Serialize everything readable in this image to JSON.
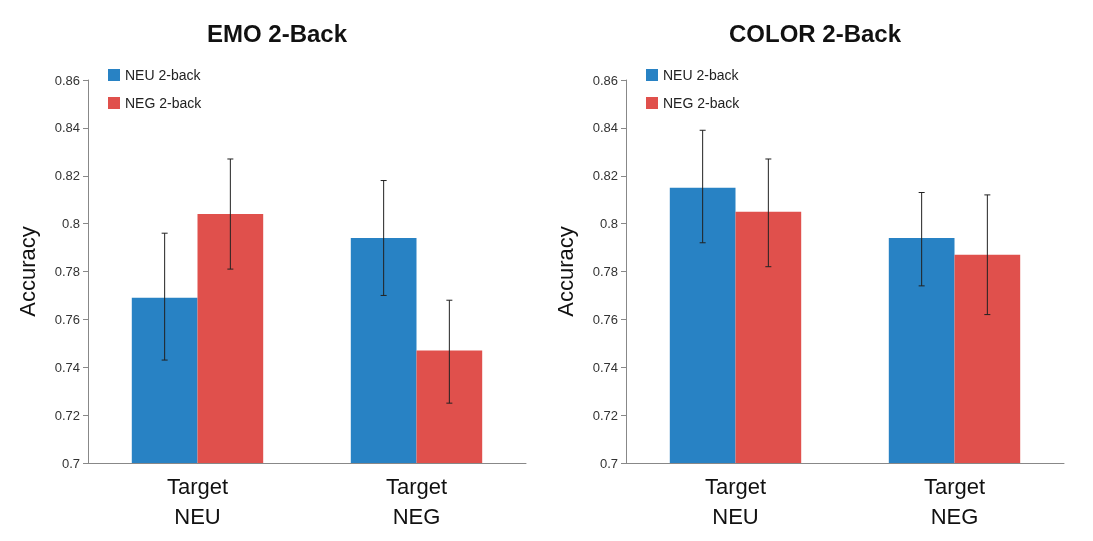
{
  "chart_data": [
    {
      "type": "bar",
      "title": "EMO 2-Back",
      "ylabel": "Accuracy",
      "categories": [
        "Target\nNEU",
        "Target\nNEG"
      ],
      "ylim": [
        0.7,
        0.86
      ],
      "yticks": [
        0.7,
        0.72,
        0.74,
        0.76,
        0.78,
        0.8,
        0.82,
        0.84,
        0.86
      ],
      "grid": false,
      "legend": "top left",
      "series": [
        {
          "name": "NEU 2-back",
          "color": "#2882c4",
          "values": [
            0.769,
            0.794
          ],
          "errors": [
            [
              0.743,
              0.796
            ],
            [
              0.77,
              0.818
            ]
          ]
        },
        {
          "name": "NEG 2-back",
          "color": "#e0504c",
          "values": [
            0.804,
            0.747
          ],
          "errors": [
            [
              0.781,
              0.827
            ],
            [
              0.725,
              0.768
            ]
          ]
        }
      ]
    },
    {
      "type": "bar",
      "title": "COLOR 2-Back",
      "ylabel": "Accuracy",
      "categories": [
        "Target\nNEU",
        "Target\nNEG"
      ],
      "ylim": [
        0.7,
        0.86
      ],
      "yticks": [
        0.7,
        0.72,
        0.74,
        0.76,
        0.78,
        0.8,
        0.82,
        0.84,
        0.86
      ],
      "grid": false,
      "legend": "top left",
      "series": [
        {
          "name": "NEU 2-back",
          "color": "#2882c4",
          "values": [
            0.815,
            0.794
          ],
          "errors": [
            [
              0.792,
              0.839
            ],
            [
              0.774,
              0.813
            ]
          ]
        },
        {
          "name": "NEG 2-back",
          "color": "#e0504c",
          "values": [
            0.805,
            0.787
          ],
          "errors": [
            [
              0.782,
              0.827
            ],
            [
              0.762,
              0.812
            ]
          ]
        }
      ]
    }
  ]
}
